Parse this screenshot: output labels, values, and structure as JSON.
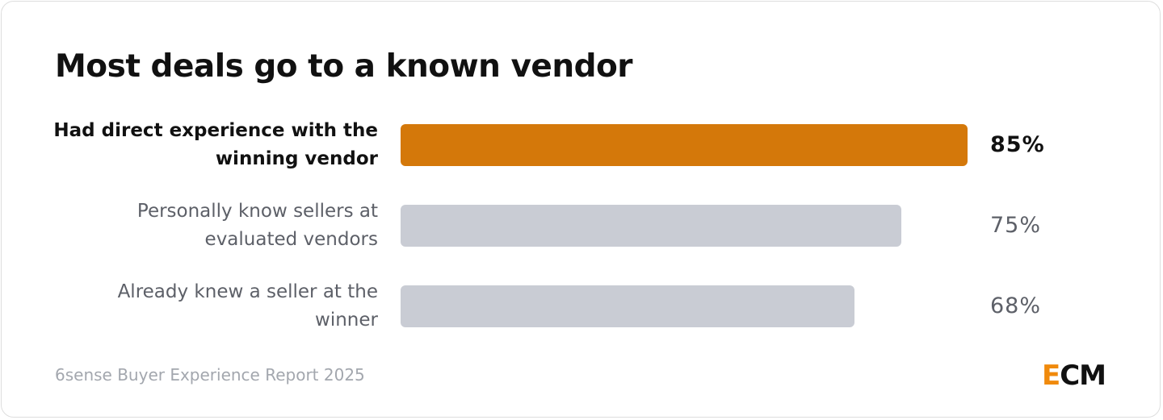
{
  "chart_data": {
    "type": "bar",
    "orientation": "horizontal",
    "title": "Most deals go to a known vendor",
    "categories": [
      "Had direct experience with the winning vendor",
      "Personally know sellers at evaluated vendors",
      "Already knew a seller at the winner"
    ],
    "values": [
      85,
      75,
      68
    ],
    "value_labels": [
      "85%",
      "75%",
      "68%"
    ],
    "colors": [
      "#d4780a",
      "#c9ccd4",
      "#c9ccd4"
    ],
    "highlight_index": 0,
    "xlim": [
      0,
      100
    ],
    "source": "6sense Buyer Experience Report 2025",
    "logo": {
      "accent": "E",
      "rest": "CM"
    }
  }
}
